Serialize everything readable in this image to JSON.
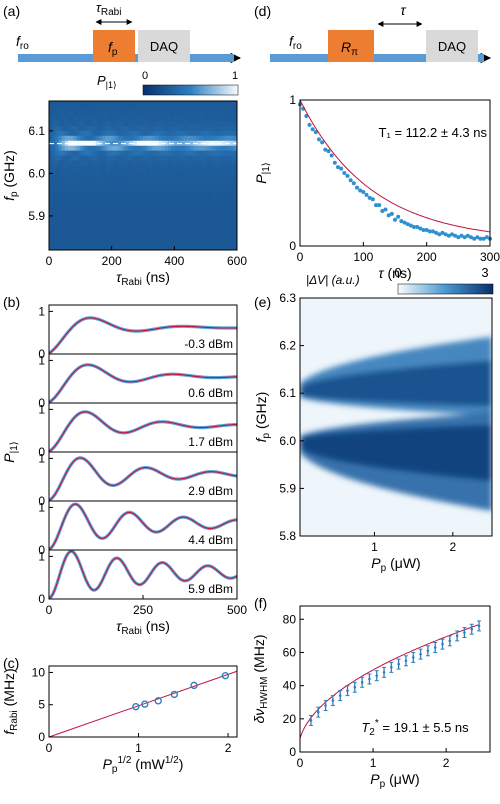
{
  "panels": {
    "a": {
      "label": "(a)"
    },
    "b": {
      "label": "(b)"
    },
    "c": {
      "label": "(c)"
    },
    "d": {
      "label": "(d)"
    },
    "e": {
      "label": "(e)"
    },
    "f": {
      "label": "(f)"
    }
  },
  "pulse_a": {
    "f_ro": "f",
    "f_ro_sub": "ro",
    "tau_main": "τ",
    "tau_sub": "Rabi",
    "pulse_main": "f",
    "pulse_sub": "p",
    "daq": "DAQ",
    "cb_label_main": "P",
    "cb_label_sub": "|1⟩",
    "cb_min": "0",
    "cb_max": "1"
  },
  "pulse_d": {
    "f_ro": "f",
    "f_ro_sub": "ro",
    "pulse_main": "R",
    "pulse_sub": "π",
    "tau": "τ",
    "daq": "DAQ"
  },
  "panel_e_colorbar": {
    "label": "|ΔV| (a.u.)",
    "min": "0",
    "max": "3"
  },
  "chart_data": [
    {
      "panel": "a",
      "type": "heatmap",
      "xlabel_main": "τ",
      "xlabel_sub": "Rabi",
      "xlabel_unit": " (ns)",
      "ylabel_main": "f",
      "ylabel_sub": "p",
      "ylabel_unit": " (GHz)",
      "xlim": [
        0,
        600
      ],
      "ylim": [
        5.82,
        6.17
      ],
      "xticks": [
        "0",
        "200",
        "400",
        "600"
      ],
      "yticks": [
        "5.9",
        "6.0",
        "6.1"
      ],
      "dashed_line_y": 6.07
    },
    {
      "panel": "b",
      "type": "line",
      "xlabel_main": "τ",
      "xlabel_sub": "Rabi",
      "xlabel_unit": " (ns)",
      "ylabel_main": "P",
      "ylabel_sub": "|1⟩",
      "xlim": [
        0,
        500
      ],
      "ylim": [
        0,
        1.15
      ],
      "xticks": [
        "0",
        "250",
        "500"
      ],
      "yticks": [
        "0",
        "1"
      ],
      "series": [
        {
          "power": "-0.3 dBm",
          "f_mhz": 4.7,
          "tau_ns": 120
        },
        {
          "power": "0.6 dBm",
          "f_mhz": 5.1,
          "tau_ns": 140
        },
        {
          "power": "1.7 dBm",
          "f_mhz": 5.6,
          "tau_ns": 160
        },
        {
          "power": "2.9 dBm",
          "f_mhz": 6.6,
          "tau_ns": 200
        },
        {
          "power": "4.4 dBm",
          "f_mhz": 8.0,
          "tau_ns": 260
        },
        {
          "power": "5.9 dBm",
          "f_mhz": 9.5,
          "tau_ns": 320
        }
      ]
    },
    {
      "panel": "c",
      "type": "scatter",
      "xlabel_main": "P",
      "xlabel_sub": "p",
      "xlabel_sup": "1/2",
      "xlabel_unit": " (mW",
      "xlabel_unit_sup": "1/2",
      "xlabel_unit_end": ")",
      "ylabel_main": "f",
      "ylabel_sub": "Rabi",
      "ylabel_unit": " (MHz)",
      "xlim": [
        0,
        2.1
      ],
      "ylim": [
        0,
        11
      ],
      "xticks": [
        "0",
        "1",
        "2"
      ],
      "yticks": [
        "0",
        "5",
        "10"
      ],
      "x": [
        0.97,
        1.07,
        1.22,
        1.4,
        1.62,
        1.97
      ],
      "y": [
        4.7,
        5.1,
        5.6,
        6.6,
        8.0,
        9.5
      ],
      "fit_slope": 4.85
    },
    {
      "panel": "d",
      "type": "scatter",
      "annotation": "T₁ = 112.2 ± 4.3 ns",
      "xlabel_main": "τ",
      "xlabel_unit": " (ns)",
      "ylabel_main": "P",
      "ylabel_sub": "|1⟩",
      "xlim": [
        0,
        300
      ],
      "ylim": [
        0,
        1
      ],
      "xticks": [
        "0",
        "100",
        "200",
        "300"
      ],
      "yticks": [
        "0",
        "1"
      ],
      "fit_T1_ns": 112.2,
      "fit_offset": 0.03,
      "x": [
        0,
        5,
        10,
        15,
        20,
        25,
        30,
        35,
        40,
        45,
        50,
        55,
        60,
        65,
        70,
        75,
        80,
        85,
        90,
        95,
        100,
        105,
        110,
        115,
        120,
        125,
        130,
        135,
        140,
        145,
        150,
        155,
        160,
        165,
        170,
        175,
        180,
        185,
        190,
        195,
        200,
        205,
        210,
        215,
        220,
        225,
        230,
        235,
        240,
        245,
        250,
        255,
        260,
        265,
        270,
        275,
        280,
        285,
        290,
        295,
        300
      ],
      "y": [
        0.97,
        0.94,
        0.89,
        0.83,
        0.8,
        0.78,
        0.73,
        0.71,
        0.66,
        0.65,
        0.62,
        0.57,
        0.54,
        0.53,
        0.5,
        0.48,
        0.45,
        0.43,
        0.4,
        0.38,
        0.37,
        0.35,
        0.33,
        0.32,
        0.28,
        0.28,
        0.24,
        0.25,
        0.21,
        0.22,
        0.18,
        0.2,
        0.17,
        0.16,
        0.15,
        0.14,
        0.13,
        0.13,
        0.12,
        0.11,
        0.11,
        0.1,
        0.1,
        0.09,
        0.08,
        0.09,
        0.08,
        0.07,
        0.08,
        0.07,
        0.06,
        0.07,
        0.06,
        0.07,
        0.06,
        0.05,
        0.06,
        0.05,
        0.05,
        0.06,
        0.05
      ]
    },
    {
      "panel": "e",
      "type": "heatmap",
      "xlabel_main": "P",
      "xlabel_sub": "p",
      "xlabel_unit": " (μW)",
      "ylabel_main": "f",
      "ylabel_sub": "p",
      "ylabel_unit": " (GHz)",
      "xlim": [
        0.05,
        2.5
      ],
      "ylim": [
        5.8,
        6.3
      ],
      "xticks": [
        "1",
        "2"
      ],
      "yticks": [
        "5.8",
        "5.9",
        "6.0",
        "6.1",
        "6.2",
        "6.3"
      ]
    },
    {
      "panel": "f",
      "type": "scatter",
      "annotation_main": "T",
      "annotation_sub": "2",
      "annotation_sup": "*",
      "annotation_rest": " = 19.1 ± 5.5 ns",
      "xlabel_main": "P",
      "xlabel_sub": "p",
      "xlabel_unit": " (μW)",
      "ylabel_main": "δν",
      "ylabel_sub": "HWHM",
      "ylabel_unit": " (MHz)",
      "xlim": [
        0,
        2.6
      ],
      "ylim": [
        0,
        88
      ],
      "xticks": [
        "0",
        "1",
        "2"
      ],
      "yticks": [
        "0",
        "20",
        "40",
        "60",
        "80"
      ],
      "x": [
        0.15,
        0.25,
        0.35,
        0.45,
        0.55,
        0.65,
        0.75,
        0.85,
        0.95,
        1.05,
        1.15,
        1.25,
        1.35,
        1.45,
        1.55,
        1.65,
        1.75,
        1.85,
        1.95,
        2.05,
        2.15,
        2.25,
        2.35,
        2.45
      ],
      "y": [
        19,
        24,
        28,
        31,
        34,
        37,
        39,
        42,
        44,
        46,
        48,
        51,
        53,
        55,
        57,
        59,
        61,
        63,
        65,
        67,
        70,
        72,
        74,
        76
      ],
      "err": 3
    }
  ]
}
